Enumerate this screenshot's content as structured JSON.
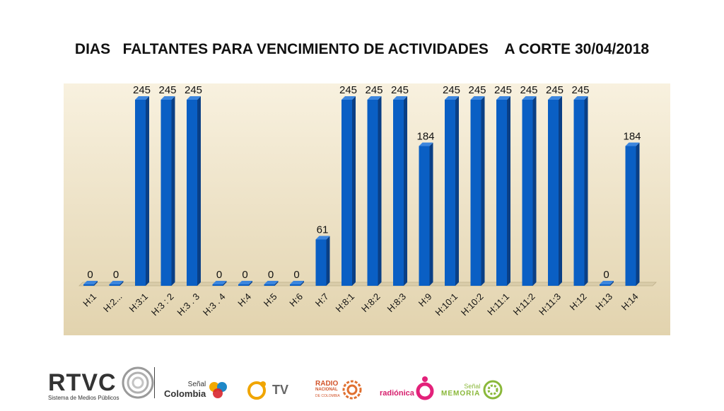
{
  "title": "DIAS   FALTANTES PARA VENCIMIENTO DE ACTIVIDADES    A CORTE 30/04/2018",
  "colors": {
    "bar": "#0a5fc4",
    "bar_side": "#0a3f85",
    "bar_top": "#3c86de",
    "plot_bg_top": "#f8f1df",
    "plot_bg_bottom": "#e2d3ae"
  },
  "chart_data": {
    "type": "bar",
    "title": "DIAS   FALTANTES PARA VENCIMIENTO DE ACTIVIDADES    A CORTE 30/04/2018",
    "categories": [
      "H:1",
      "H:2...",
      "H:3:1",
      "H:3 : 2",
      "H:3 . 3",
      "H:3 . 4",
      "H:4",
      "H:5",
      "H:6",
      "H:7",
      "H:8:1",
      "H:8:2",
      "H:8:3",
      "H:9",
      "H:10:1",
      "H:10:2",
      "H:11:1",
      "H:11:2",
      "H:11:3",
      "H:12",
      "H:13",
      "H:14"
    ],
    "values": [
      0,
      0,
      245,
      245,
      245,
      0,
      0,
      0,
      0,
      61,
      245,
      245,
      245,
      184,
      245,
      245,
      245,
      245,
      245,
      245,
      0,
      184
    ],
    "data_labels": [
      "0",
      "0",
      "245",
      "245",
      "245",
      "0",
      "0",
      "0",
      "0",
      "61",
      "245",
      "245",
      "245",
      "184",
      "245",
      "245",
      "245",
      "245",
      "245",
      "245",
      "0",
      "184"
    ],
    "xlabel": "",
    "ylabel": "",
    "ylim": [
      0,
      245
    ]
  },
  "footer": {
    "rtvc": {
      "name": "RTVC",
      "subtitle": "Sistema de Medios Públicos"
    },
    "senal_colombia": {
      "line1": "Señal",
      "line2": "Colombia"
    },
    "canal_tv": {
      "label": "TV"
    },
    "radio_nacional": {
      "line1": "RADIO",
      "line2": "NACIONAL",
      "line3": "DE COLOMBIA"
    },
    "radionica": {
      "label": "radiónica"
    },
    "senal_memoria": {
      "line1": "Señal",
      "line2": "MEMORIA"
    }
  }
}
